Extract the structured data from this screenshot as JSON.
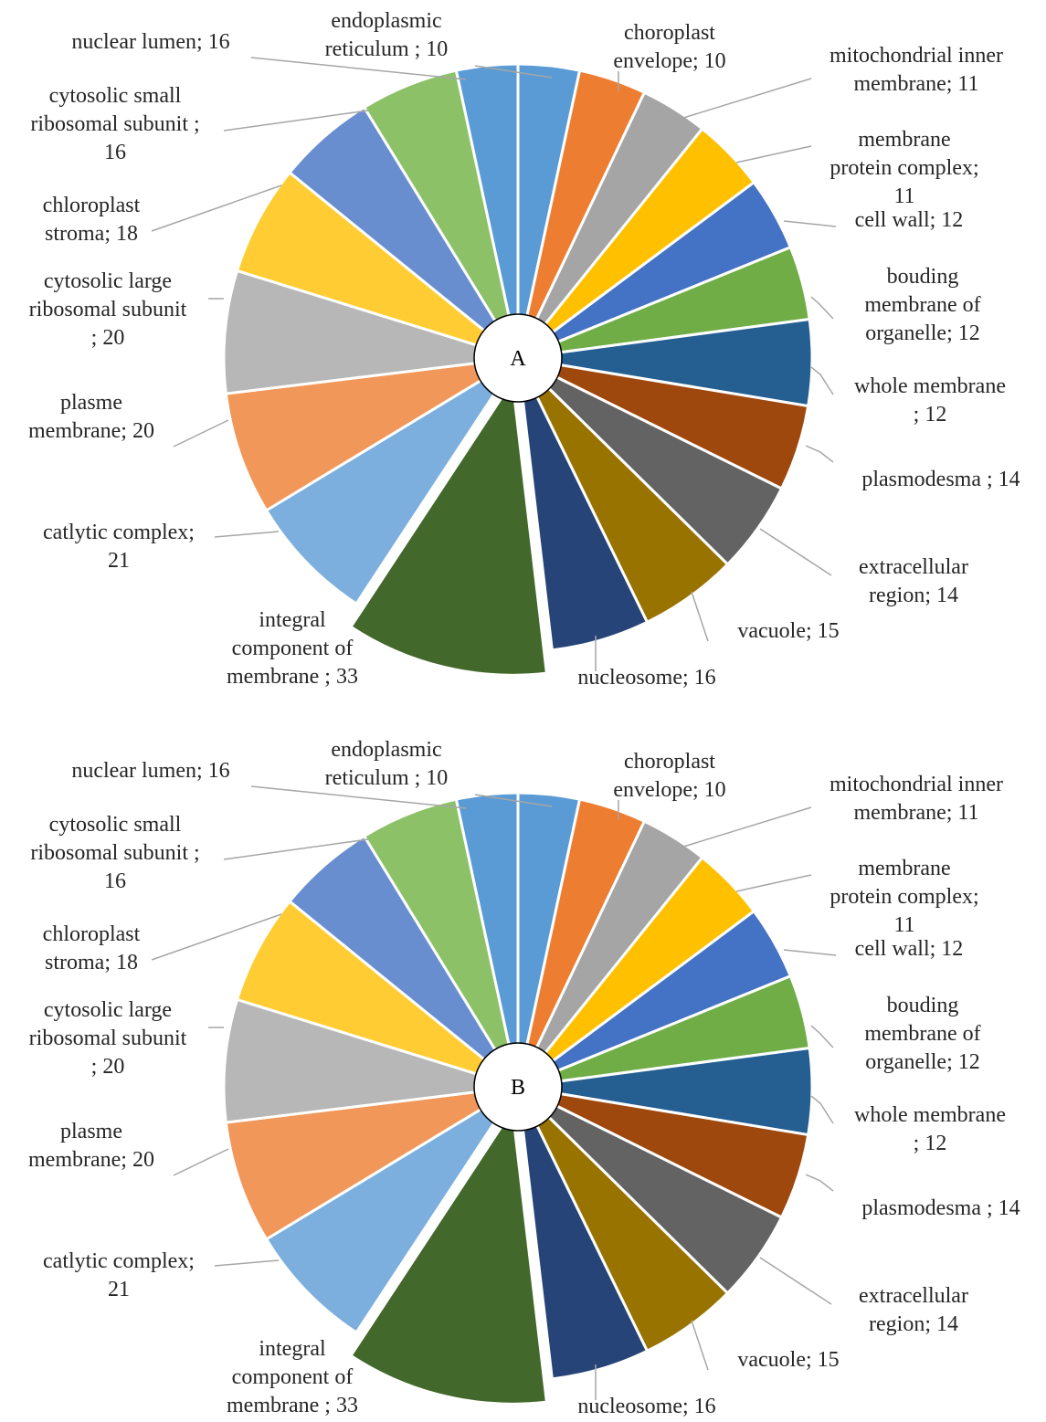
{
  "chart_data": [
    {
      "type": "pie",
      "center_label": "A",
      "slices": [
        {
          "label": "choroplast envelope",
          "value": 10,
          "color": "#5B9BD5"
        },
        {
          "label": "mitochondrial inner membrane",
          "value": 11,
          "color": "#ED7D31"
        },
        {
          "label": "membrane protein complex",
          "value": 11,
          "color": "#A5A5A5"
        },
        {
          "label": "cell wall",
          "value": 12,
          "color": "#FFC000"
        },
        {
          "label": "bouding membrane of organelle",
          "value": 12,
          "color": "#4472C4"
        },
        {
          "label": "whole membrane",
          "value": 12,
          "color": "#70AD47"
        },
        {
          "label": "plasmodesma",
          "value": 14,
          "color": "#255E91"
        },
        {
          "label": "extracellular region",
          "value": 14,
          "color": "#9E480E"
        },
        {
          "label": "vacuole",
          "value": 15,
          "color": "#636363"
        },
        {
          "label": "nucleosome",
          "value": 16,
          "color": "#997300"
        },
        {
          "label": "",
          "value": 16,
          "color": "#264478"
        },
        {
          "label": "integral component of membrane",
          "value": 33,
          "color": "#43682B",
          "exploded": true
        },
        {
          "label": "catlytic complex",
          "value": 21,
          "color": "#7CAFDD"
        },
        {
          "label": "plasme membrane",
          "value": 20,
          "color": "#F1975A"
        },
        {
          "label": "cytosolic large ribosomal subunit",
          "value": 20,
          "color": "#B7B7B7"
        },
        {
          "label": "chloroplast stroma",
          "value": 18,
          "color": "#FFCD33"
        },
        {
          "label": "cytosolic small ribosomal subunit",
          "value": 16,
          "color": "#698ED0"
        },
        {
          "label": "nuclear lumen",
          "value": 16,
          "color": "#8CC168"
        },
        {
          "label": "endoplasmic reticulum",
          "value": 10,
          "color": "#5B9BD5"
        }
      ]
    },
    {
      "type": "pie",
      "center_label": "B",
      "slices": [
        {
          "label": "choroplast envelope",
          "value": 10,
          "color": "#5B9BD5"
        },
        {
          "label": "mitochondrial inner membrane",
          "value": 11,
          "color": "#ED7D31"
        },
        {
          "label": "membrane protein complex",
          "value": 11,
          "color": "#A5A5A5"
        },
        {
          "label": "cell wall",
          "value": 12,
          "color": "#FFC000"
        },
        {
          "label": "bouding membrane of organelle",
          "value": 12,
          "color": "#4472C4"
        },
        {
          "label": "whole membrane",
          "value": 12,
          "color": "#70AD47"
        },
        {
          "label": "plasmodesma",
          "value": 14,
          "color": "#255E91"
        },
        {
          "label": "extracellular region",
          "value": 14,
          "color": "#9E480E"
        },
        {
          "label": "vacuole",
          "value": 15,
          "color": "#636363"
        },
        {
          "label": "nucleosome",
          "value": 16,
          "color": "#997300"
        },
        {
          "label": "",
          "value": 16,
          "color": "#264478"
        },
        {
          "label": "integral component of membrane",
          "value": 33,
          "color": "#43682B",
          "exploded": true
        },
        {
          "label": "catlytic complex",
          "value": 21,
          "color": "#7CAFDD"
        },
        {
          "label": "plasme membrane",
          "value": 20,
          "color": "#F1975A"
        },
        {
          "label": "cytosolic large ribosomal subunit",
          "value": 20,
          "color": "#B7B7B7"
        },
        {
          "label": "chloroplast stroma",
          "value": 18,
          "color": "#FFCD33"
        },
        {
          "label": "cytosolic small ribosomal subunit",
          "value": 16,
          "color": "#698ED0"
        },
        {
          "label": "nuclear lumen",
          "value": 16,
          "color": "#8CC168"
        },
        {
          "label": "endoplasmic reticulum",
          "value": 10,
          "color": "#5B9BD5"
        }
      ]
    }
  ],
  "labels": [
    [
      "nuclear lumen; 16"
    ],
    [
      "endoplasmic",
      "reticulum ; 10"
    ],
    [
      "choroplast",
      "envelope; 10"
    ],
    [
      "mitochondrial inner",
      "membrane; 11"
    ],
    [
      "cytosolic small",
      "ribosomal subunit ;",
      "16"
    ],
    [
      "membrane",
      "protein complex;",
      "11"
    ],
    [
      "chloroplast",
      "stroma; 18"
    ],
    [
      "cell wall; 12"
    ],
    [
      "cytosolic large",
      "ribosomal subunit",
      "; 20"
    ],
    [
      "bouding",
      "membrane of",
      "organelle; 12"
    ],
    [
      "whole membrane",
      "; 12"
    ],
    [
      "plasme",
      "membrane; 20"
    ],
    [
      "plasmodesma ; 14"
    ],
    [
      "catlytic complex;",
      "21"
    ],
    [
      "extracellular",
      "region; 14"
    ],
    [
      "integral",
      "component of",
      "membrane ; 33"
    ],
    [
      "vacuole; 15"
    ],
    [
      "nucleosome; 16"
    ]
  ]
}
